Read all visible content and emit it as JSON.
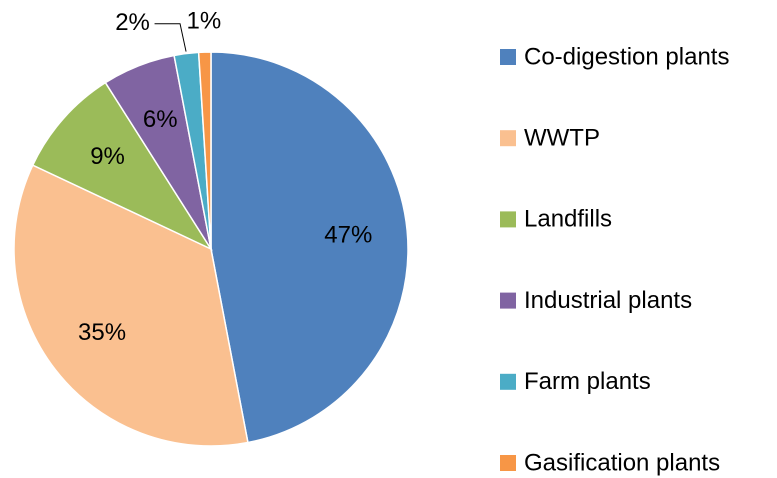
{
  "chart_data": {
    "type": "pie",
    "categories": [
      "Co-digestion plants",
      "WWTP",
      "Landfills",
      "Industrial plants",
      "Farm plants",
      "Gasification plants"
    ],
    "values": [
      47,
      35,
      9,
      6,
      2,
      1
    ],
    "value_labels": [
      "47%",
      "35%",
      "9%",
      "6%",
      "2%",
      "1%"
    ],
    "colors": [
      "#4f81bd",
      "#fac090",
      "#9bbb59",
      "#8064a2",
      "#4bacc6",
      "#f79646"
    ],
    "legend": "right"
  }
}
